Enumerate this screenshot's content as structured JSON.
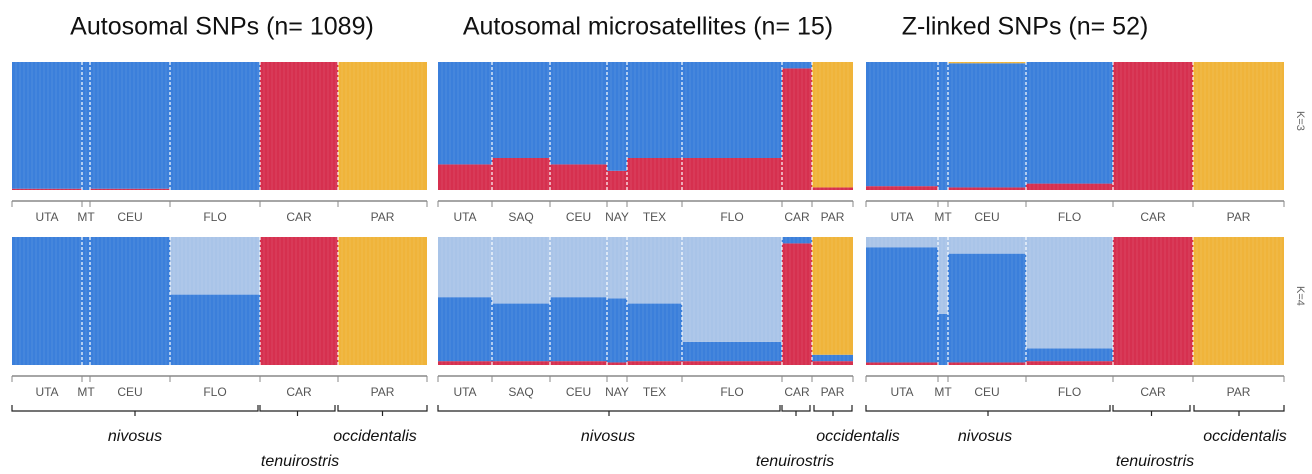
{
  "cluster_colors": [
    "#d6304f",
    "#3b7fdb",
    "#a9c4e8",
    "#f0b43a"
  ],
  "k_labels": [
    "K=3",
    "K=4"
  ],
  "panels": [
    {
      "title": "Autosomal SNPs (n= 1089)",
      "populations": [
        "UTA",
        "MT",
        "CEU",
        "FLO",
        "CAR",
        "PAR"
      ],
      "species": [
        "nivosus",
        "tenuirostris",
        "occidentalis"
      ],
      "proportions": [
        [
          [
            0.01,
            0.99,
            0,
            0
          ],
          [
            0,
            1,
            0,
            0
          ],
          [
            0.01,
            0.99,
            0,
            0
          ],
          [
            0,
            1,
            0,
            0
          ],
          [
            1,
            0,
            0,
            0
          ],
          [
            0,
            0,
            0,
            1
          ]
        ],
        [
          [
            0,
            1,
            0,
            0
          ],
          [
            0,
            1,
            0,
            0
          ],
          [
            0,
            1,
            0,
            0
          ],
          [
            0,
            0.55,
            0.45,
            0
          ],
          [
            1,
            0,
            0,
            0
          ],
          [
            0,
            0,
            0,
            1
          ]
        ]
      ]
    },
    {
      "title": "Autosomal microsatellites (n= 15)",
      "populations": [
        "UTA",
        "SAQ",
        "CEU",
        "NAY",
        "TEX",
        "FLO",
        "CAR",
        "PAR"
      ],
      "species": [
        "nivosus",
        "tenuirostris",
        "occidentalis"
      ],
      "proportions": [
        [
          [
            0.2,
            0.8,
            0,
            0
          ],
          [
            0.25,
            0.75,
            0,
            0
          ],
          [
            0.2,
            0.8,
            0,
            0
          ],
          [
            0.15,
            0.85,
            0,
            0
          ],
          [
            0.25,
            0.75,
            0,
            0
          ],
          [
            0.25,
            0.75,
            0,
            0
          ],
          [
            0.95,
            0.05,
            0,
            0
          ],
          [
            0.02,
            0,
            0,
            0.98
          ]
        ],
        [
          [
            0.03,
            0.5,
            0.47,
            0
          ],
          [
            0.03,
            0.45,
            0.52,
            0
          ],
          [
            0.03,
            0.5,
            0.47,
            0
          ],
          [
            0.02,
            0.5,
            0.48,
            0
          ],
          [
            0.03,
            0.45,
            0.52,
            0
          ],
          [
            0.03,
            0.15,
            0.82,
            0
          ],
          [
            0.95,
            0.05,
            0,
            0
          ],
          [
            0.03,
            0.05,
            0,
            0.92
          ]
        ]
      ]
    },
    {
      "title": "Z-linked SNPs (n= 52)",
      "populations": [
        "UTA",
        "MT",
        "CEU",
        "FLO",
        "CAR",
        "PAR"
      ],
      "species": [
        "nivosus",
        "tenuirostris",
        "occidentalis"
      ],
      "proportions": [
        [
          [
            0.03,
            0.97,
            0,
            0
          ],
          [
            0,
            1,
            0,
            0
          ],
          [
            0.02,
            0.97,
            0,
            0.01
          ],
          [
            0.05,
            0.95,
            0,
            0
          ],
          [
            1,
            0,
            0,
            0
          ],
          [
            0,
            0,
            0,
            1
          ]
        ],
        [
          [
            0.02,
            0.9,
            0.08,
            0
          ],
          [
            0,
            0.4,
            0.6,
            0
          ],
          [
            0.02,
            0.85,
            0.13,
            0
          ],
          [
            0.03,
            0.1,
            0.87,
            0
          ],
          [
            1,
            0,
            0,
            0
          ],
          [
            0,
            0,
            0,
            1
          ]
        ]
      ]
    }
  ]
}
